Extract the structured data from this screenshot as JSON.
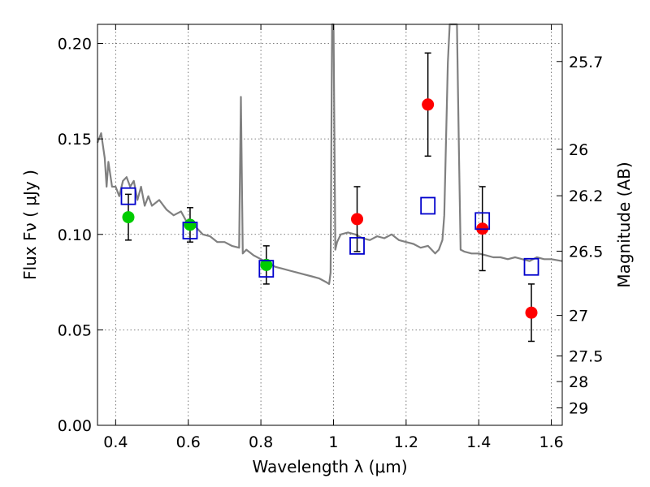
{
  "chart_data": {
    "type": "scatter",
    "title": "",
    "xlabel": "Wavelength  λ (μm)",
    "ylabel": "Flux  Fν  ( μJy )",
    "y2label": "Magnitude (AB)",
    "xlim": [
      0.35,
      1.63
    ],
    "ylim": [
      0.0,
      0.21
    ],
    "grid": true,
    "xticks": [
      {
        "v": 0.4,
        "label": "0.4"
      },
      {
        "v": 0.6,
        "label": "0.6"
      },
      {
        "v": 0.8,
        "label": "0.8"
      },
      {
        "v": 1.0,
        "label": "1"
      },
      {
        "v": 1.2,
        "label": "1.2"
      },
      {
        "v": 1.4,
        "label": "1.4"
      },
      {
        "v": 1.6,
        "label": "1.6"
      }
    ],
    "yticks": [
      {
        "v": 0.0,
        "label": "0.00"
      },
      {
        "v": 0.05,
        "label": "0.05"
      },
      {
        "v": 0.1,
        "label": "0.10"
      },
      {
        "v": 0.15,
        "label": "0.15"
      },
      {
        "v": 0.2,
        "label": "0.20"
      }
    ],
    "y2ticks": [
      {
        "mag": 25.7,
        "label": "25.7"
      },
      {
        "mag": 26,
        "label": "26"
      },
      {
        "mag": 26.2,
        "label": "26.2"
      },
      {
        "mag": 26.5,
        "label": "26.5"
      },
      {
        "mag": 27,
        "label": "27"
      },
      {
        "mag": 27.5,
        "label": "27.5"
      },
      {
        "mag": 28,
        "label": "28"
      },
      {
        "mag": 29,
        "label": "29"
      }
    ],
    "series": [
      {
        "type": "line",
        "color": "#808080",
        "x": [
          0.35,
          0.36,
          0.37,
          0.375,
          0.38,
          0.39,
          0.4,
          0.41,
          0.42,
          0.43,
          0.44,
          0.45,
          0.46,
          0.47,
          0.48,
          0.49,
          0.5,
          0.52,
          0.54,
          0.56,
          0.58,
          0.6,
          0.62,
          0.64,
          0.66,
          0.68,
          0.7,
          0.72,
          0.74,
          0.745,
          0.75,
          0.76,
          0.78,
          0.8,
          0.82,
          0.84,
          0.86,
          0.88,
          0.9,
          0.92,
          0.94,
          0.96,
          0.98,
          0.988,
          0.992,
          0.996,
          1.0,
          1.005,
          1.01,
          1.02,
          1.04,
          1.06,
          1.08,
          1.1,
          1.12,
          1.14,
          1.16,
          1.18,
          1.2,
          1.22,
          1.24,
          1.26,
          1.28,
          1.29,
          1.3,
          1.305,
          1.31,
          1.315,
          1.32,
          1.325,
          1.33,
          1.335,
          1.34,
          1.345,
          1.35,
          1.36,
          1.38,
          1.4,
          1.42,
          1.44,
          1.46,
          1.48,
          1.5,
          1.52,
          1.54,
          1.56,
          1.58,
          1.6,
          1.63
        ],
        "y": [
          0.148,
          0.153,
          0.14,
          0.125,
          0.138,
          0.125,
          0.125,
          0.12,
          0.128,
          0.13,
          0.125,
          0.128,
          0.118,
          0.125,
          0.115,
          0.12,
          0.115,
          0.118,
          0.113,
          0.11,
          0.112,
          0.105,
          0.104,
          0.1,
          0.099,
          0.096,
          0.096,
          0.094,
          0.093,
          0.172,
          0.09,
          0.092,
          0.089,
          0.087,
          0.085,
          0.083,
          0.082,
          0.081,
          0.08,
          0.079,
          0.078,
          0.077,
          0.075,
          0.074,
          0.08,
          0.21,
          0.21,
          0.092,
          0.096,
          0.1,
          0.101,
          0.1,
          0.098,
          0.097,
          0.099,
          0.098,
          0.1,
          0.097,
          0.096,
          0.095,
          0.093,
          0.094,
          0.09,
          0.092,
          0.097,
          0.11,
          0.15,
          0.19,
          0.21,
          0.21,
          0.21,
          0.21,
          0.21,
          0.15,
          0.092,
          0.091,
          0.09,
          0.09,
          0.089,
          0.088,
          0.088,
          0.087,
          0.088,
          0.087,
          0.086,
          0.088,
          0.087,
          0.087,
          0.086
        ]
      },
      {
        "type": "scatter",
        "color": "#00cc00",
        "x": [
          0.435,
          0.605,
          0.815
        ],
        "y": [
          0.109,
          0.105,
          0.084
        ],
        "err": [
          0.012,
          0.009,
          0.01
        ]
      },
      {
        "type": "scatter",
        "color": "#ff0000",
        "x": [
          1.065,
          1.26,
          1.41,
          1.545
        ],
        "y": [
          0.108,
          0.168,
          0.103,
          0.059
        ],
        "err": [
          0.017,
          0.027,
          0.022,
          0.015
        ]
      },
      {
        "type": "scatter",
        "marker": "square",
        "color": "#0000cc",
        "x": [
          0.435,
          0.605,
          0.815,
          1.065,
          1.26,
          1.41,
          1.545
        ],
        "y": [
          0.12,
          0.102,
          0.082,
          0.094,
          0.115,
          0.107,
          0.083
        ]
      }
    ]
  }
}
